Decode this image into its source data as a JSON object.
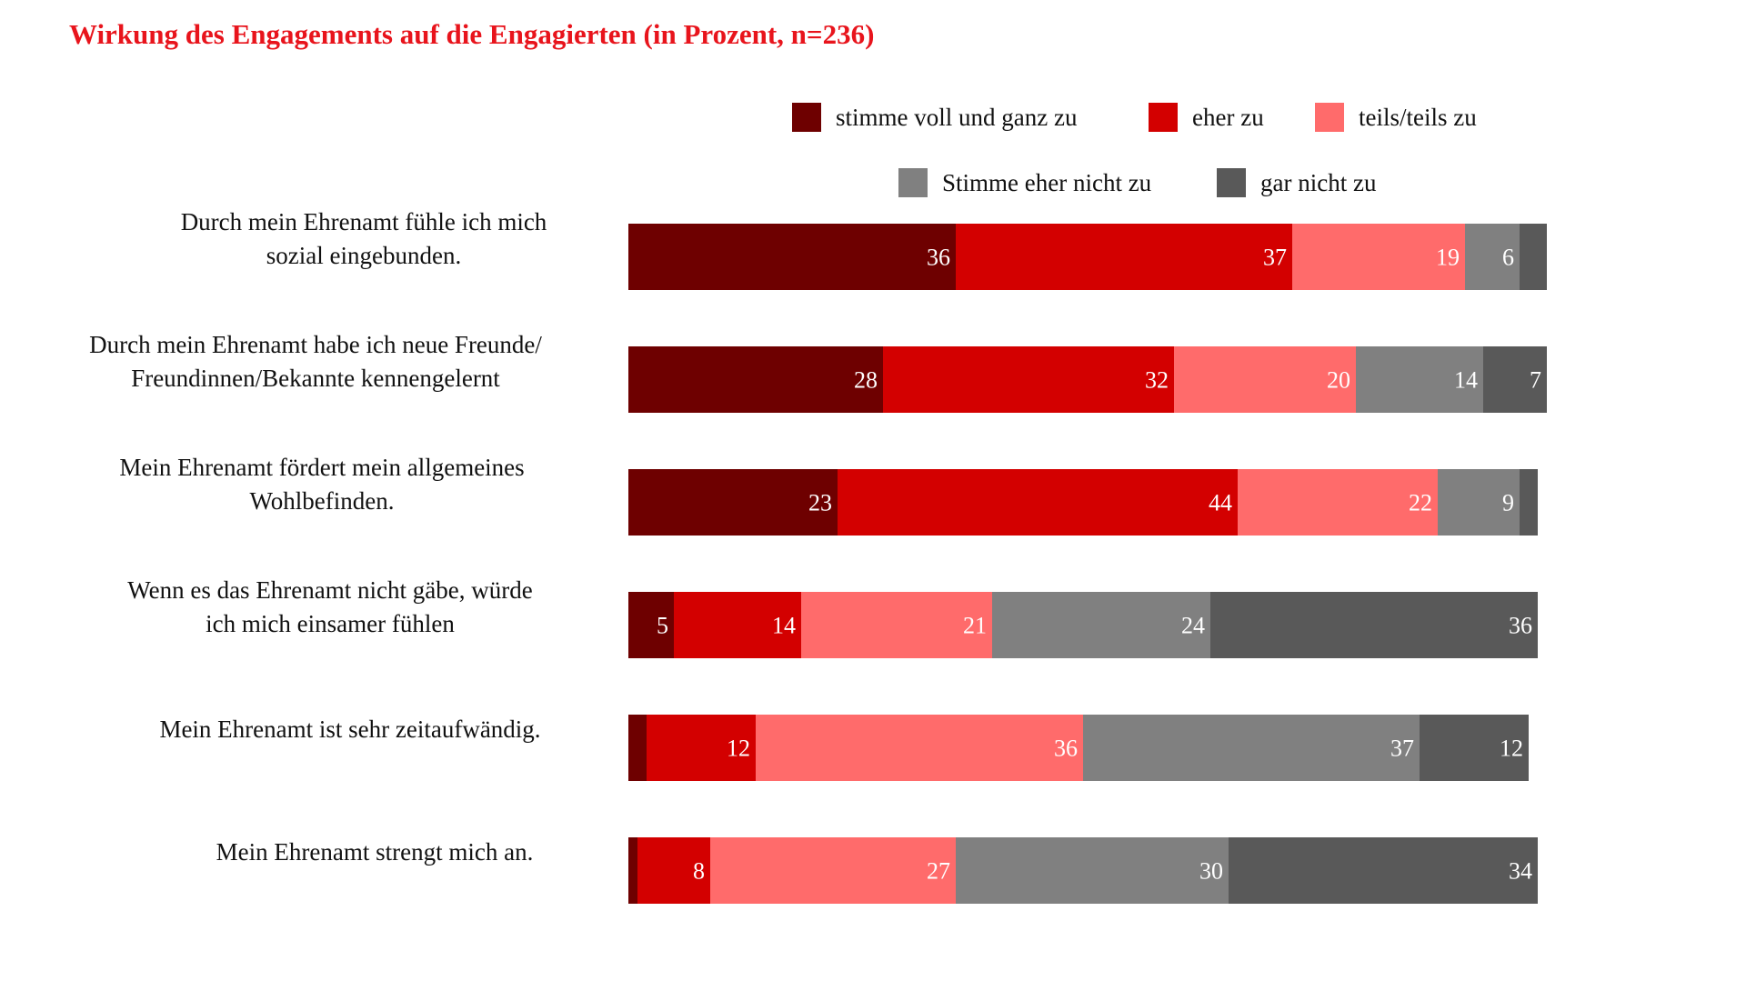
{
  "chart_data": {
    "type": "bar",
    "orientation": "horizontal",
    "stacked": true,
    "title": "Wirkung des Engagements auf die Engagierten (in Prozent, n=236)",
    "xlim": [
      0,
      100
    ],
    "grid": false,
    "legend_position": "top-right",
    "categories": [
      [
        "Durch mein Ehrenamt fühle ich mich",
        "sozial eingebunden."
      ],
      [
        "Durch mein Ehrenamt habe ich neue Freunde/",
        "Freundinnen/Bekannte kennengelernt"
      ],
      [
        "Mein Ehrenamt fördert mein allgemeines",
        "Wohlbefinden."
      ],
      [
        "Wenn es das Ehrenamt nicht gäbe, würde",
        "ich mich einsamer fühlen"
      ],
      [
        "Mein Ehrenamt ist sehr zeitaufwändig."
      ],
      [
        "Mein Ehrenamt strengt mich an."
      ]
    ],
    "series": [
      {
        "name": "stimme voll und ganz zu",
        "color": "#6e0000",
        "values": [
          36,
          28,
          23,
          5,
          2,
          1
        ]
      },
      {
        "name": "eher zu",
        "color": "#d30000",
        "values": [
          37,
          32,
          44,
          14,
          12,
          8
        ]
      },
      {
        "name": "teils/teils zu",
        "color": "#ff6b6b",
        "values": [
          19,
          20,
          22,
          21,
          36,
          27
        ]
      },
      {
        "name": "Stimme eher nicht zu",
        "color": "#808080",
        "values": [
          6,
          14,
          9,
          24,
          37,
          30
        ]
      },
      {
        "name": "gar nicht zu",
        "color": "#595959",
        "values": [
          3,
          7,
          2,
          36,
          12,
          34
        ]
      }
    ],
    "data_labels": [
      [
        "36",
        "37",
        "19",
        "6",
        ""
      ],
      [
        "28",
        "32",
        "20",
        "14",
        "7"
      ],
      [
        "23",
        "44",
        "22",
        "9",
        ""
      ],
      [
        "5",
        "14",
        "21",
        "24",
        "36"
      ],
      [
        "",
        "12",
        "36",
        "37",
        "12"
      ],
      [
        "",
        "8",
        "27",
        "30",
        "34"
      ]
    ]
  }
}
